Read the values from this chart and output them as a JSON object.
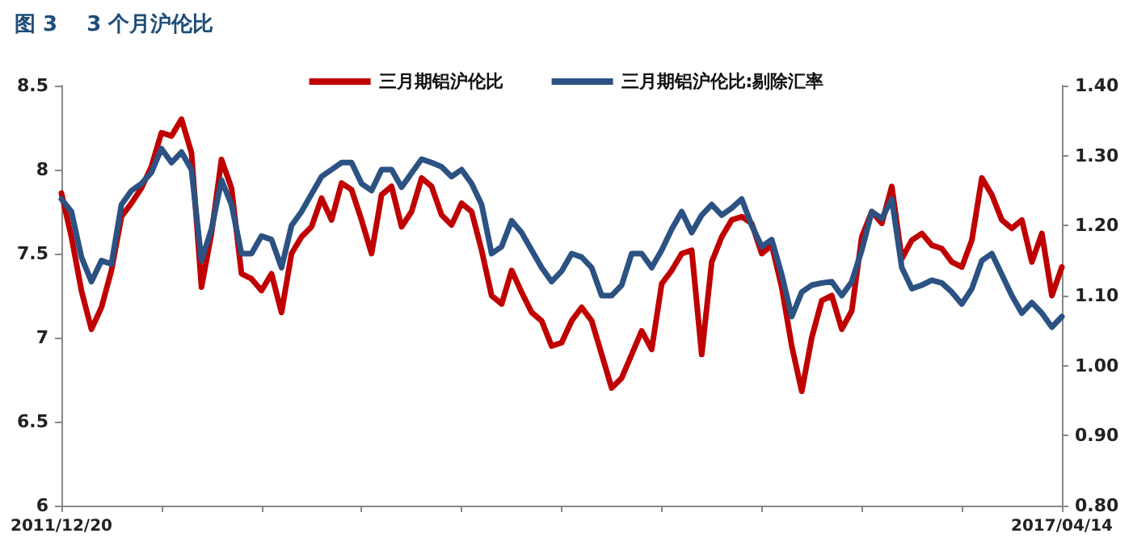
{
  "chart_data": {
    "type": "line",
    "title": "图 3    3 个月沪伦比",
    "categories": [
      "2011/12/20",
      null,
      null,
      null,
      null,
      null,
      null,
      null,
      null,
      null,
      null,
      null,
      null,
      null,
      null,
      null,
      null,
      null,
      null,
      null,
      null,
      null,
      null,
      null,
      null,
      null,
      null,
      null,
      null,
      null,
      null,
      null,
      null,
      null,
      null,
      null,
      null,
      null,
      null,
      null,
      null,
      null,
      null,
      null,
      null,
      null,
      null,
      null,
      null,
      null,
      null,
      null,
      null,
      null,
      null,
      null,
      null,
      null,
      null,
      null,
      null,
      null,
      null,
      null,
      null,
      null,
      null,
      null,
      null,
      null,
      null,
      null,
      null,
      null,
      null,
      null,
      null,
      null,
      null,
      null,
      null,
      null,
      null,
      null,
      null,
      null,
      null,
      null,
      null,
      null,
      null,
      null,
      null,
      null,
      null,
      null,
      null,
      null,
      null,
      null,
      "2017/04/14"
    ],
    "series": [
      {
        "name": "三月期铝沪伦比",
        "color": "#c00000",
        "values": [
          7.86,
          7.6,
          7.28,
          7.05,
          7.18,
          7.4,
          7.72,
          7.8,
          7.89,
          8.02,
          8.22,
          8.2,
          8.3,
          8.1,
          7.3,
          7.62,
          8.06,
          7.89,
          7.38,
          7.35,
          7.28,
          7.38,
          7.15,
          7.5,
          7.6,
          7.66,
          7.83,
          7.7,
          7.92,
          7.88,
          7.7,
          7.5,
          7.85,
          7.9,
          7.66,
          7.75,
          7.95,
          7.9,
          7.73,
          7.67,
          7.8,
          7.75,
          7.52,
          7.25,
          7.2,
          7.4,
          7.27,
          7.15,
          7.1,
          6.95,
          6.97,
          7.1,
          7.18,
          7.1,
          6.9,
          6.7,
          6.76,
          6.9,
          7.04,
          6.93,
          7.32,
          7.4,
          7.5,
          7.52,
          6.9,
          7.45,
          7.6,
          7.7,
          7.72,
          7.68,
          7.5,
          7.55,
          7.3,
          6.95,
          6.68,
          7.0,
          7.22,
          7.25,
          7.05,
          7.16,
          7.6,
          7.75,
          7.68,
          7.9,
          7.47,
          7.58,
          7.62,
          7.55,
          7.53,
          7.45,
          7.42,
          7.58,
          7.95,
          7.85,
          7.7,
          7.65,
          7.7,
          7.45,
          7.62,
          7.25,
          7.42
        ]
      },
      {
        "name": "三月期铝沪伦比:剔除汇率",
        "color": "#2b5282",
        "axis": "y2",
        "values": [
          1.238,
          1.22,
          1.155,
          1.12,
          1.15,
          1.145,
          1.23,
          1.25,
          1.26,
          1.276,
          1.31,
          1.29,
          1.305,
          1.28,
          1.15,
          1.195,
          1.265,
          1.23,
          1.16,
          1.16,
          1.185,
          1.18,
          1.14,
          1.2,
          1.22,
          1.245,
          1.27,
          1.28,
          1.29,
          1.29,
          1.26,
          1.25,
          1.28,
          1.28,
          1.255,
          1.275,
          1.295,
          1.29,
          1.284,
          1.27,
          1.28,
          1.26,
          1.23,
          1.16,
          1.17,
          1.207,
          1.19,
          1.165,
          1.14,
          1.12,
          1.135,
          1.16,
          1.155,
          1.14,
          1.1,
          1.1,
          1.115,
          1.16,
          1.16,
          1.14,
          1.165,
          1.195,
          1.22,
          1.19,
          1.215,
          1.23,
          1.215,
          1.225,
          1.238,
          1.2,
          1.17,
          1.18,
          1.13,
          1.07,
          1.105,
          1.115,
          1.118,
          1.12,
          1.1,
          1.12,
          1.165,
          1.22,
          1.21,
          1.238,
          1.14,
          1.11,
          1.115,
          1.122,
          1.118,
          1.105,
          1.088,
          1.11,
          1.15,
          1.16,
          1.13,
          1.1,
          1.075,
          1.09,
          1.075,
          1.055,
          1.07
        ]
      }
    ],
    "ylim": [
      6,
      8.5
    ],
    "yticks": [
      6,
      6.5,
      7,
      7.5,
      8,
      8.5
    ],
    "y2lim": [
      0.8,
      1.4
    ],
    "y2ticks": [
      {
        "value": 0.8,
        "label": "0.80"
      },
      {
        "value": 0.9,
        "label": "0.90"
      },
      {
        "value": 1.0,
        "label": "1.00"
      },
      {
        "value": 1.1,
        "label": "1.10"
      },
      {
        "value": 1.2,
        "label": "1.20"
      },
      {
        "value": 1.3,
        "label": "1.30"
      },
      {
        "value": 1.4,
        "label": "1.40"
      }
    ],
    "grid": false,
    "legend": "top",
    "marker": "none",
    "line_style": "solid"
  }
}
